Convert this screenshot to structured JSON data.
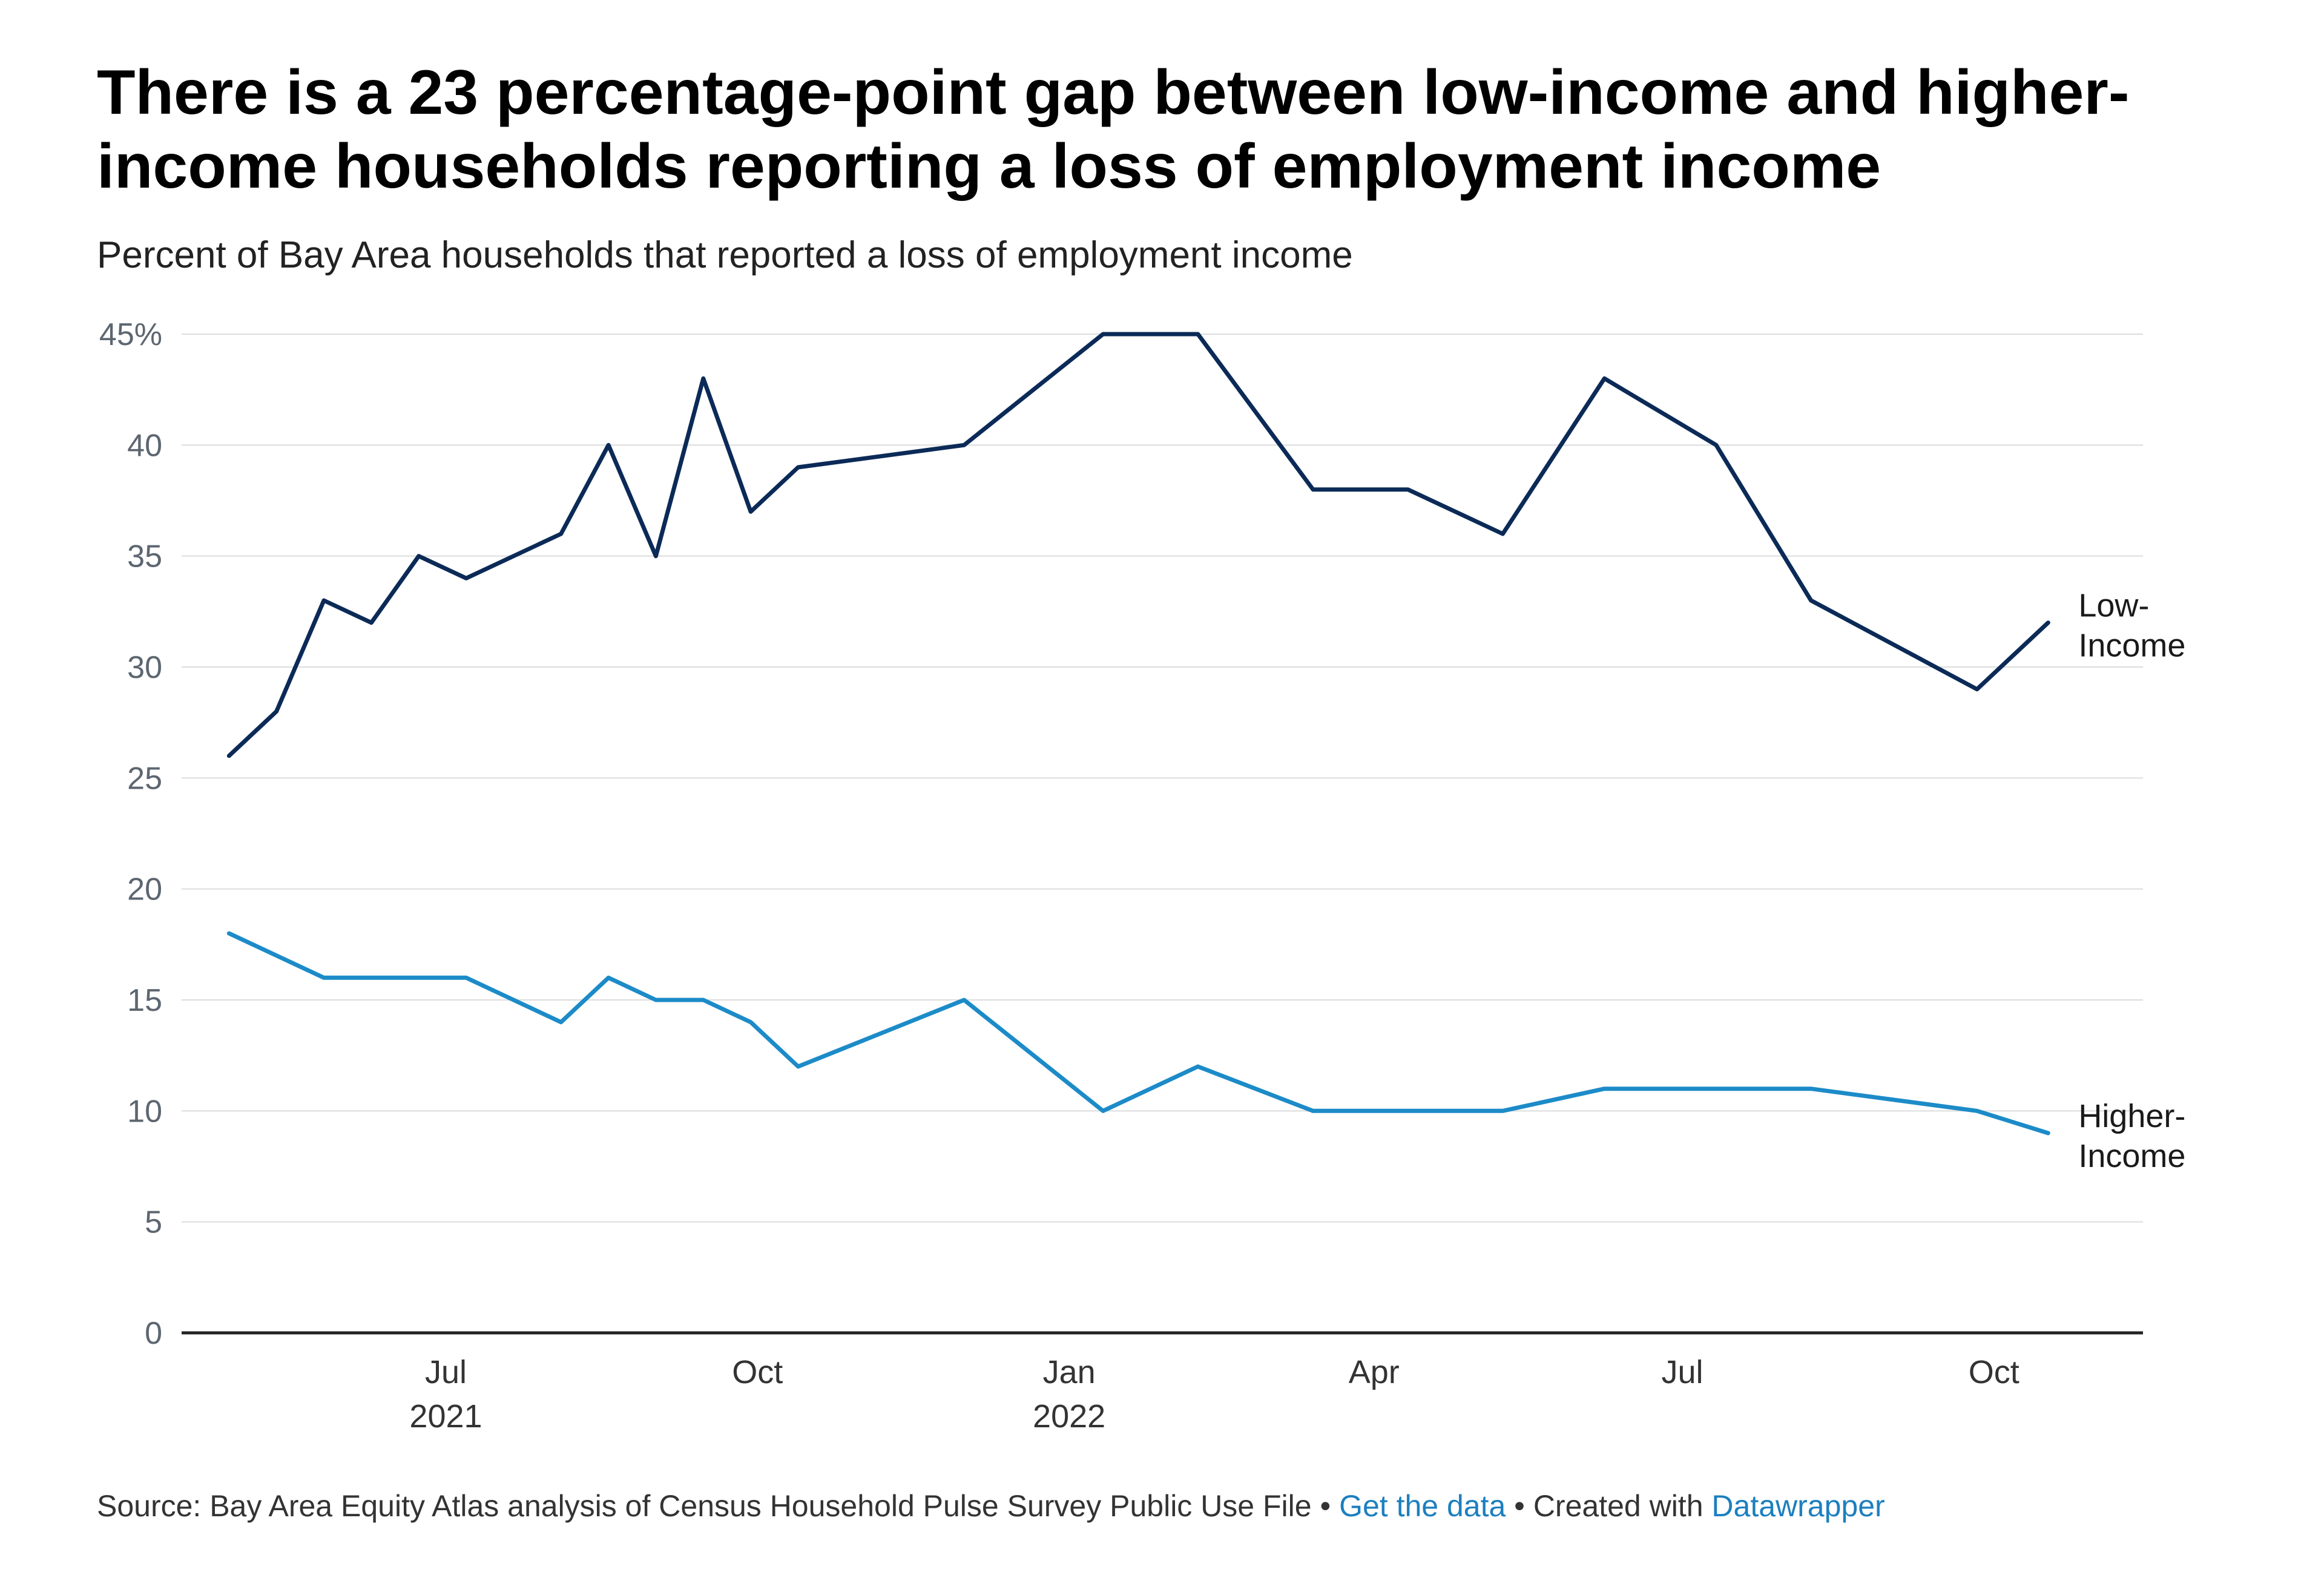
{
  "headline": "There is a 23 percentage-point gap between low-income and higher-income households reporting a loss of employment income",
  "subtitle": "Percent of Bay Area households that reported a loss of employment income",
  "footer": {
    "source": "Source: Bay Area Equity Atlas analysis of Census Household Pulse Survey Public Use File",
    "separator": "•",
    "get_data_label": "Get the data",
    "created_with": "Created with",
    "tool_name": "Datawrapper"
  },
  "chart_data": {
    "type": "line",
    "title": "There is a 23 percentage-point gap between low-income and higher-income households reporting a loss of employment income",
    "subtitle": "Percent of Bay Area households that reported a loss of employment income",
    "xlabel": "",
    "ylabel": "",
    "ylim": [
      0,
      45
    ],
    "xlim": [
      "2021-04-14",
      "2022-11-14"
    ],
    "y_ticks": [
      0,
      5,
      10,
      15,
      20,
      25,
      30,
      35,
      40,
      45
    ],
    "y_tick_labels": [
      "0",
      "5",
      "10",
      "15",
      "20",
      "25",
      "30",
      "35",
      "40",
      "45%"
    ],
    "x_ticks": [
      {
        "date": "2021-07-01",
        "label": "Jul",
        "year": "2021"
      },
      {
        "date": "2021-10-01",
        "label": "Oct",
        "year": ""
      },
      {
        "date": "2022-01-01",
        "label": "Jan",
        "year": "2022"
      },
      {
        "date": "2022-04-01",
        "label": "Apr",
        "year": ""
      },
      {
        "date": "2022-07-01",
        "label": "Jul",
        "year": ""
      },
      {
        "date": "2022-10-01",
        "label": "Oct",
        "year": ""
      }
    ],
    "grid": "horizontal",
    "legend": "direct labels at line ends",
    "colors": {
      "low_income": "#0b2a57",
      "higher_income": "#1c8bc8",
      "grid": "#dcdcdc",
      "axis": "#222222"
    },
    "series": [
      {
        "name": "Low-Income",
        "label_lines": [
          "Low-",
          "Income"
        ],
        "color": "#0b2a57",
        "points": [
          {
            "x": "2021-04-28",
            "y": 26
          },
          {
            "x": "2021-05-12",
            "y": 28
          },
          {
            "x": "2021-05-26",
            "y": 33
          },
          {
            "x": "2021-06-09",
            "y": 32
          },
          {
            "x": "2021-06-23",
            "y": 35
          },
          {
            "x": "2021-07-07",
            "y": 34
          },
          {
            "x": "2021-08-04",
            "y": 36
          },
          {
            "x": "2021-08-18",
            "y": 40
          },
          {
            "x": "2021-09-01",
            "y": 35
          },
          {
            "x": "2021-09-15",
            "y": 43
          },
          {
            "x": "2021-09-29",
            "y": 37
          },
          {
            "x": "2021-10-13",
            "y": 39
          },
          {
            "x": "2021-12-01",
            "y": 40
          },
          {
            "x": "2022-01-11",
            "y": 45
          },
          {
            "x": "2022-02-08",
            "y": 45
          },
          {
            "x": "2022-03-14",
            "y": 38
          },
          {
            "x": "2022-04-11",
            "y": 38
          },
          {
            "x": "2022-05-09",
            "y": 36
          },
          {
            "x": "2022-06-08",
            "y": 43
          },
          {
            "x": "2022-07-11",
            "y": 40
          },
          {
            "x": "2022-08-08",
            "y": 33
          },
          {
            "x": "2022-09-26",
            "y": 29
          },
          {
            "x": "2022-10-17",
            "y": 32
          }
        ]
      },
      {
        "name": "Higher-Income",
        "label_lines": [
          "Higher-",
          "Income"
        ],
        "color": "#1c8bc8",
        "points": [
          {
            "x": "2021-04-28",
            "y": 18
          },
          {
            "x": "2021-05-26",
            "y": 16
          },
          {
            "x": "2021-07-07",
            "y": 16
          },
          {
            "x": "2021-08-04",
            "y": 14
          },
          {
            "x": "2021-08-18",
            "y": 16
          },
          {
            "x": "2021-09-01",
            "y": 15
          },
          {
            "x": "2021-09-15",
            "y": 15
          },
          {
            "x": "2021-09-29",
            "y": 14
          },
          {
            "x": "2021-10-13",
            "y": 12
          },
          {
            "x": "2021-12-01",
            "y": 15
          },
          {
            "x": "2022-01-11",
            "y": 10
          },
          {
            "x": "2022-02-08",
            "y": 12
          },
          {
            "x": "2022-03-14",
            "y": 10
          },
          {
            "x": "2022-05-09",
            "y": 10
          },
          {
            "x": "2022-06-08",
            "y": 11
          },
          {
            "x": "2022-08-08",
            "y": 11
          },
          {
            "x": "2022-09-26",
            "y": 10
          },
          {
            "x": "2022-10-17",
            "y": 9
          }
        ]
      }
    ]
  }
}
